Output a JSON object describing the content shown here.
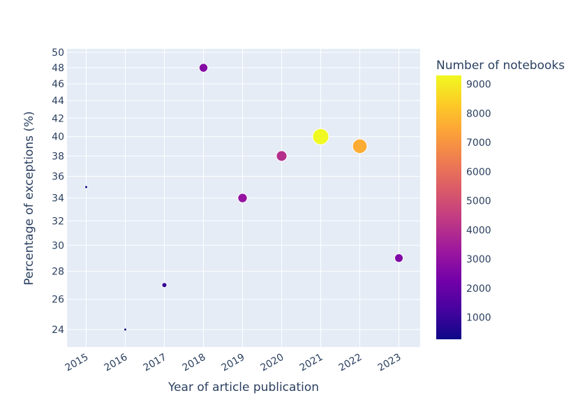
{
  "chart_data": {
    "type": "scatter",
    "xlabel": "Year of article publication",
    "ylabel": "Percentage of exceptions (%)",
    "x_categories": [
      "2015",
      "2016",
      "2017",
      "2018",
      "2019",
      "2020",
      "2021",
      "2022",
      "2023"
    ],
    "y_scale": "log",
    "y_ticks": [
      24,
      26,
      28,
      30,
      32,
      34,
      36,
      38,
      40,
      42,
      44,
      46,
      48,
      50
    ],
    "points": [
      {
        "x": "2015",
        "y": 35,
        "notebooks": 300
      },
      {
        "x": "2016",
        "y": 24,
        "notebooks": 250
      },
      {
        "x": "2017",
        "y": 27,
        "notebooks": 900
      },
      {
        "x": "2018",
        "y": 48,
        "notebooks": 2700
      },
      {
        "x": "2019",
        "y": 34,
        "notebooks": 3100
      },
      {
        "x": "2020",
        "y": 38,
        "notebooks": 4000
      },
      {
        "x": "2021",
        "y": 40,
        "notebooks": 9300
      },
      {
        "x": "2022",
        "y": 39,
        "notebooks": 7600
      },
      {
        "x": "2023",
        "y": 29,
        "notebooks": 2600
      }
    ],
    "colorbar": {
      "title": "Number of notebooks",
      "ticks": [
        1000,
        2000,
        3000,
        4000,
        5000,
        6000,
        7000,
        8000,
        9000
      ],
      "min": 250,
      "max": 9300,
      "colorscale": [
        "#0d0887",
        "#46039f",
        "#7201a8",
        "#9c179e",
        "#bd3786",
        "#d8576b",
        "#ed7953",
        "#fb9f3a",
        "#fdca26",
        "#f0f921"
      ]
    },
    "plot_background": "#e5ecf6",
    "grid": true
  }
}
